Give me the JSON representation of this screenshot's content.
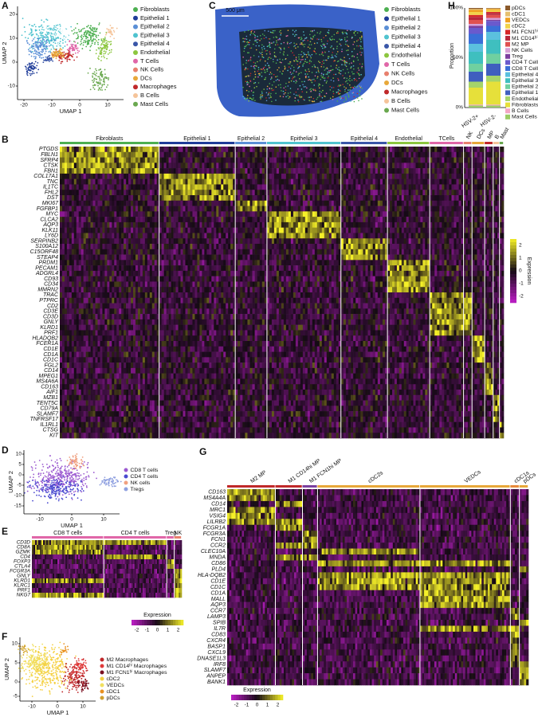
{
  "panels": {
    "A": {
      "letter": "A",
      "x_label": "UMAP 1",
      "y_label": "UMAP 2",
      "xticks": [
        "-20",
        "-10",
        "0",
        "10"
      ],
      "yticks": [
        "20",
        "10",
        "0",
        "-10"
      ],
      "legend": [
        {
          "label": "Fibroblasts",
          "color": "#4caf50"
        },
        {
          "label": "Epithelial 1",
          "color": "#1f3c99"
        },
        {
          "label": "Epithelial 2",
          "color": "#5b8fd6"
        },
        {
          "label": "Epithelial 3",
          "color": "#4fc3cf"
        },
        {
          "label": "Epithelial 4",
          "color": "#3a56a8"
        },
        {
          "label": "Endothelial",
          "color": "#8cc63f"
        },
        {
          "label": "T Cells",
          "color": "#e066a8"
        },
        {
          "label": "NK Cells",
          "color": "#e8806e"
        },
        {
          "label": "DCs",
          "color": "#e8a83a"
        },
        {
          "label": "Macrophages",
          "color": "#c0282a"
        },
        {
          "label": "B Cells",
          "color": "#f5c49a"
        },
        {
          "label": "Mast Cells",
          "color": "#6aa84f"
        }
      ]
    },
    "C": {
      "letter": "C",
      "scale_bar": "500 μm",
      "legend": [
        {
          "label": "Fibroblasts",
          "color": "#4caf50"
        },
        {
          "label": "Epithelial 1",
          "color": "#1f3c99"
        },
        {
          "label": "Epithelial 2",
          "color": "#5b8fd6"
        },
        {
          "label": "Epithelial 3",
          "color": "#4fc3cf"
        },
        {
          "label": "Epithelial 4",
          "color": "#3a56a8"
        },
        {
          "label": "Endothelial",
          "color": "#8cc63f"
        },
        {
          "label": "T Cells",
          "color": "#e066a8"
        },
        {
          "label": "NK Cells",
          "color": "#e8806e"
        },
        {
          "label": "DCs",
          "color": "#e8a83a"
        },
        {
          "label": "Macrophages",
          "color": "#c0282a"
        },
        {
          "label": "B Cells",
          "color": "#f5c49a"
        },
        {
          "label": "Mast Cells",
          "color": "#6aa84f"
        }
      ]
    },
    "H": {
      "letter": "H",
      "y_label": "Proportion",
      "yticks": [
        "100%",
        "50%",
        "0%"
      ],
      "categories": [
        "HSV-2+",
        "HSV-2-"
      ],
      "series": [
        {
          "name": "Mast Cells",
          "color": "#9ccc65",
          "values": [
            2,
            2
          ]
        },
        {
          "name": "B Cells",
          "color": "#f4a6c6",
          "values": [
            1,
            1
          ]
        },
        {
          "name": "Fibroblasts",
          "color": "#e6e03a",
          "values": [
            17,
            23
          ]
        },
        {
          "name": "Endothelial",
          "color": "#a5d46a",
          "values": [
            6,
            6
          ]
        },
        {
          "name": "Epithelial 1",
          "color": "#3f5fbf",
          "values": [
            10,
            12
          ]
        },
        {
          "name": "Epithelial 2",
          "color": "#6fd0a0",
          "values": [
            8,
            10
          ]
        },
        {
          "name": "Epithelial 3",
          "color": "#3fbfbf",
          "values": [
            12,
            14
          ]
        },
        {
          "name": "Epithelial 4",
          "color": "#5bc0de",
          "values": [
            8,
            8
          ]
        },
        {
          "name": "CD8 T Cells",
          "color": "#3a6fd8",
          "values": [
            10,
            6
          ]
        },
        {
          "name": "CD4 T Cells",
          "color": "#6a5acd",
          "values": [
            6,
            5
          ]
        },
        {
          "name": "Treg",
          "color": "#7b3f9e",
          "values": [
            2,
            1
          ]
        },
        {
          "name": "NK Cells",
          "color": "#d7a0d7",
          "values": [
            2,
            2
          ]
        },
        {
          "name": "M2 MP",
          "color": "#e05050",
          "values": [
            4,
            3
          ]
        },
        {
          "name": "M1 CD14ʰⁱ MP",
          "color": "#b8283c",
          "values": [
            3,
            2
          ]
        },
        {
          "name": "M1 FCN1ʰⁱ MP",
          "color": "#d62728",
          "values": [
            2,
            1
          ]
        },
        {
          "name": "cDC2",
          "color": "#f2d24a",
          "values": [
            3,
            2
          ]
        },
        {
          "name": "VEDCs",
          "color": "#f0a020",
          "values": [
            2,
            1
          ]
        },
        {
          "name": "cDC1",
          "color": "#e6c070",
          "values": [
            1,
            0.5
          ]
        },
        {
          "name": "pDCs",
          "color": "#8b5a2b",
          "values": [
            1,
            0.5
          ]
        }
      ]
    },
    "B": {
      "letter": "B",
      "groups": [
        {
          "label": "Fibroblasts",
          "color": "#4caf50"
        },
        {
          "label": "Epithelial 1",
          "color": "#1f3c99"
        },
        {
          "label": "Epithelial 2",
          "color": "#5b8fd6"
        },
        {
          "label": "Epithelial 3",
          "color": "#4fc3cf"
        },
        {
          "label": "Epithelial 4",
          "color": "#3a56a8"
        },
        {
          "label": "Endothelial",
          "color": "#8cc63f"
        },
        {
          "label": "TCells",
          "color": "#e066a8"
        },
        {
          "label": "NK",
          "color": "#e8806e"
        },
        {
          "label": "DCs",
          "color": "#e8a83a"
        },
        {
          "label": "MP",
          "color": "#c0282a"
        },
        {
          "label": "B",
          "color": "#f5c49a"
        },
        {
          "label": "Mast",
          "color": "#6aa84f"
        }
      ],
      "genes": [
        "PTGDS",
        "FBLN1",
        "SFRP4",
        "CTSK",
        "FBN1",
        "COL17A1",
        "TNC",
        "IL1TC",
        "FHL2",
        "DST",
        "MKI67",
        "FGFBP1",
        "MYC",
        "CLCA2",
        "AQP3",
        "KLK11",
        "LY6D",
        "SERPINB2",
        "S100A12",
        "C15ORF48",
        "STEAP4",
        "PRDM1",
        "PECAM1",
        "ADGRL4",
        "CD93",
        "CD34",
        "MMRN2",
        "TRAC",
        "PTPRC",
        "CD2",
        "CD3E",
        "CD3D",
        "GNLY",
        "KLRD1",
        "PRF1",
        "HLADQB2",
        "FCER1A",
        "CD1E",
        "CD1A",
        "CD1C",
        "FGL2",
        "CD14",
        "MPEG1",
        "MS4A6A",
        "CD163",
        "AIF1",
        "MZB1",
        "TENT5C",
        "CD79A",
        "SLAMF7",
        "TNFRSF17",
        "IL1RL1",
        "CTSG",
        "KIT"
      ],
      "colorbar": {
        "title": "Expression",
        "ticks": [
          "2",
          "1",
          "0",
          "-1",
          "-2"
        ]
      }
    },
    "D": {
      "letter": "D",
      "x_label": "UMAP 1",
      "y_label": "UMAP 2",
      "xticks": [
        "-10",
        "0",
        "10"
      ],
      "yticks": [
        "10",
        "5",
        "0",
        "-5",
        "-10",
        "-15"
      ],
      "legend": [
        {
          "label": "CD8 T cells",
          "color": "#9b59d0"
        },
        {
          "label": "CD4 T cells",
          "color": "#4a4ad0"
        },
        {
          "label": "NK cells",
          "color": "#f0a080"
        },
        {
          "label": "Tregs",
          "color": "#8fa0e0"
        }
      ]
    },
    "E": {
      "letter": "E",
      "groups": [
        {
          "label": "CD8 T cells",
          "color": "#e066a8"
        },
        {
          "label": "CD4 T cells",
          "color": "#e066a8"
        },
        {
          "label": "Treg",
          "color": "#e066a8"
        },
        {
          "label": "NK",
          "color": "#e8806e"
        }
      ],
      "genes": [
        "CD3D",
        "CD8A",
        "GZMK",
        "CD4",
        "FOXP3",
        "CTLA4",
        "FCGR3A",
        "GNLY",
        "KLRD1",
        "KLRC1",
        "PRF1",
        "NKG7"
      ],
      "colorbar": {
        "title": "Expression",
        "ticks": [
          "-2",
          "-1",
          "0",
          "1",
          "2"
        ]
      }
    },
    "F": {
      "letter": "F",
      "x_label": "UMAP 1",
      "y_label": "UMAP 2",
      "xticks": [
        "-10",
        "0",
        "10"
      ],
      "yticks": [
        "10",
        "5",
        "0",
        "-5"
      ],
      "legend": [
        {
          "label": "M2 Macrophages",
          "color": "#c0282a"
        },
        {
          "label": "M1 CD14ʰⁱ Macrophages",
          "color": "#e03a3a"
        },
        {
          "label": "M1 FCN1ʰⁱ Macrophages",
          "color": "#7a1020"
        },
        {
          "label": "cDC2",
          "color": "#f5d040"
        },
        {
          "label": "VEDCs",
          "color": "#f0e060"
        },
        {
          "label": "cDC1",
          "color": "#e89020"
        },
        {
          "label": "pDCs",
          "color": "#d0a030"
        }
      ]
    },
    "G": {
      "letter": "G",
      "groups": [
        {
          "label": "M2 MP",
          "color": "#c0282a"
        },
        {
          "label": "M1 CD14hi MP",
          "color": "#c0282a"
        },
        {
          "label": "M1 FCN1hi MP",
          "color": "#7a3f9e"
        },
        {
          "label": "cDC2s",
          "color": "#e8a83a"
        },
        {
          "label": "VEDCs",
          "color": "#e8a83a"
        },
        {
          "label": "cDC1s",
          "color": "#e88a3a"
        },
        {
          "label": "pDCs",
          "color": "#e8a83a"
        }
      ],
      "genes": [
        "CD163",
        "MS4A4A",
        "CD14",
        "MRC1",
        "VSIG4",
        "LILRB2",
        "FCGR1A",
        "FCGR3A",
        "FCN1",
        "CCR2",
        "CLEC10A",
        "MNDA",
        "CD86",
        "PLD4",
        "HLA-DQB2",
        "CD1E",
        "CD1C",
        "CD1A",
        "MALL",
        "AQP3",
        "CCR7",
        "LAMP3",
        "SPIB",
        "IL7R",
        "CD83",
        "CXCR4",
        "BASP1",
        "CXCL9",
        "DNASE1L3",
        "IRF8",
        "SLAMF7",
        "ANPEP",
        "BANK1"
      ],
      "colorbar": {
        "title": "Expression",
        "ticks": [
          "-2",
          "-1",
          "0",
          "1",
          "2"
        ]
      }
    }
  }
}
